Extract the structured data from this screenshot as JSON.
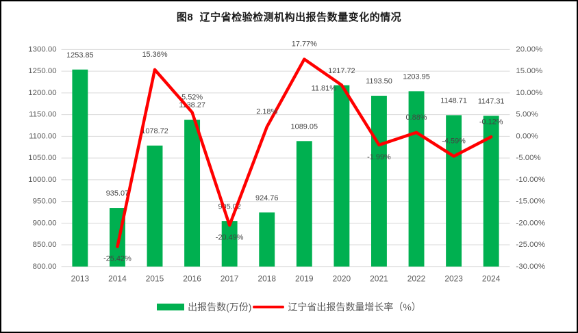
{
  "colors": {
    "bar": "#00B050",
    "line": "#FF0000",
    "grid": "#D9D9D9",
    "tick_text": "#595959",
    "label_text": "#444444",
    "title_text": "#1a1a1a",
    "frame_border": "#000000"
  },
  "legend": {
    "items": [
      {
        "label": "出报告数(万份)",
        "type": "bar",
        "color": "#00B050"
      },
      {
        "label": "辽宁省出报告数量增长率（%）",
        "type": "line",
        "color": "#FF0000"
      }
    ]
  },
  "chart_data": {
    "type": "combo-bar-line",
    "title": "图8  辽宁省检验检测机构出报告数量变化的情况",
    "categories": [
      "2013",
      "2014",
      "2015",
      "2016",
      "2017",
      "2018",
      "2019",
      "2020",
      "2021",
      "2022",
      "2023",
      "2024"
    ],
    "series": [
      {
        "name": "出报告数(万份)",
        "type": "bar",
        "axis": "left",
        "color": "#00B050",
        "values": [
          1253.85,
          935.07,
          1078.72,
          1138.27,
          905.02,
          924.76,
          1089.05,
          1217.72,
          1193.5,
          1203.95,
          1148.71,
          1147.31
        ],
        "data_labels": [
          "1253.85",
          "935.07",
          "1078.72",
          "1138.27",
          "905.02",
          "924.76",
          "1089.05",
          "1217.72",
          "1193.50",
          "1203.95",
          "1148.71",
          "1147.31"
        ]
      },
      {
        "name": "辽宁省出报告数量增长率（%）",
        "type": "line",
        "axis": "right",
        "color": "#FF0000",
        "values": [
          null,
          -25.42,
          15.36,
          5.52,
          -20.49,
          2.18,
          17.77,
          11.81,
          -1.99,
          0.88,
          -4.59,
          -0.12
        ],
        "data_labels": [
          null,
          "-25.42%",
          "15.36%",
          "5.52%",
          "-20.49%",
          "2.18%",
          "17.77%",
          "11.81%",
          "-1.99%",
          "0.88%",
          "-4.59%",
          "-0.12%"
        ],
        "label_placement": [
          null,
          "below",
          "above",
          "above",
          "below",
          "above",
          "above",
          "left",
          "below",
          "above",
          "above",
          "above"
        ]
      }
    ],
    "left_axis": {
      "min": 800,
      "max": 1300,
      "step": 50,
      "tick_labels": [
        "1300.00",
        "1250.00",
        "1200.00",
        "1150.00",
        "1100.00",
        "1050.00",
        "1000.00",
        "950.00",
        "900.00",
        "850.00",
        "800.00"
      ]
    },
    "right_axis": {
      "min": -30,
      "max": 20,
      "step": 5,
      "tick_labels": [
        "20.00%",
        "15.00%",
        "10.00%",
        "5.00%",
        "0.00%",
        "-5.00%",
        "-10.00%",
        "-15.00%",
        "-20.00%",
        "-25.00%",
        "-30.00%"
      ]
    },
    "grid": true,
    "legend_position": "bottom"
  }
}
